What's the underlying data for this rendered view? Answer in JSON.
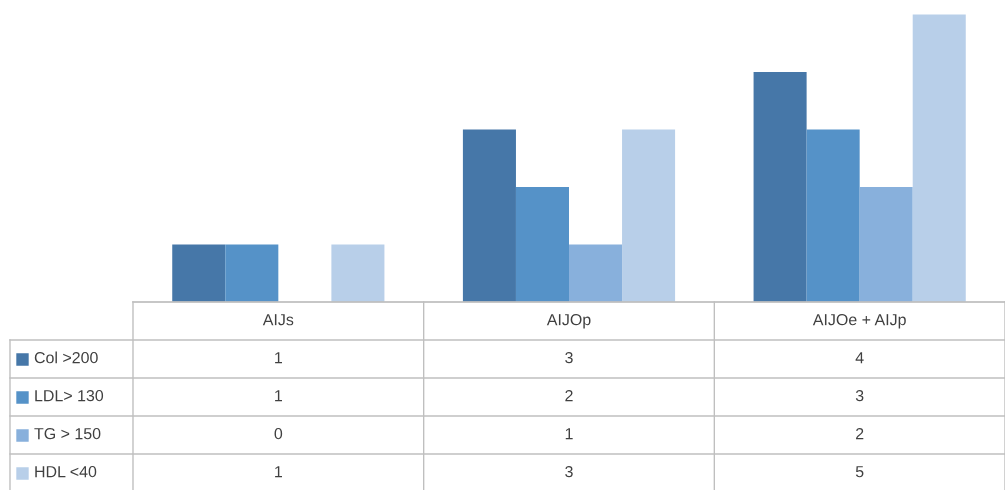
{
  "chart_data": {
    "type": "bar",
    "categories": [
      "AIJs",
      "AIJOp",
      "AIJOe + AIJp"
    ],
    "series": [
      {
        "name": "Col >200",
        "color": "#4677a8",
        "values": [
          1,
          3,
          4
        ]
      },
      {
        "name": "LDL> 130",
        "color": "#5592c8",
        "values": [
          1,
          2,
          3
        ]
      },
      {
        "name": "TG > 150",
        "color": "#88b0dc",
        "values": [
          0,
          1,
          2
        ]
      },
      {
        "name": "HDL <40",
        "color": "#b8cfe9",
        "values": [
          1,
          3,
          5
        ]
      }
    ],
    "data_labels": true,
    "legend": "bottom left"
  }
}
